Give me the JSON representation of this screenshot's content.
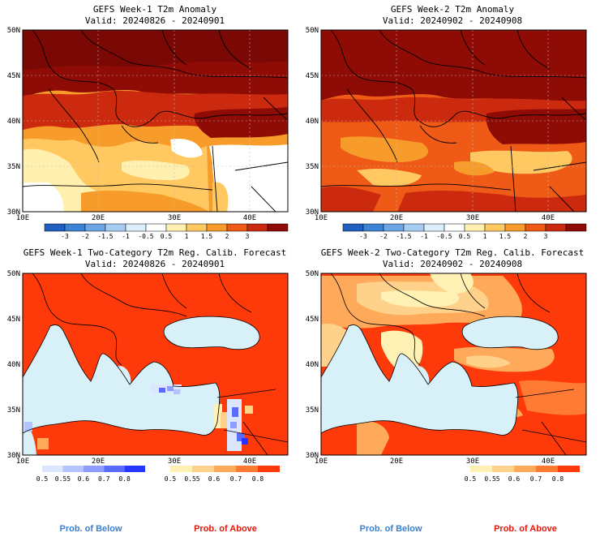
{
  "panels": [
    {
      "title_line1": "GEFS Week-1 T2m Anomaly",
      "title_line2": "Valid: 20240826 - 20240901",
      "kind": "anomaly"
    },
    {
      "title_line1": "GEFS Week-2 T2m Anomaly",
      "title_line2": "Valid: 20240902 - 20240908",
      "kind": "anomaly"
    },
    {
      "title_line1": "GEFS Week-1 Two-Category T2m Reg. Calib. Forecast",
      "title_line2": "Valid: 20240826 - 20240901",
      "kind": "probability"
    },
    {
      "title_line1": "GEFS Week-2 Two-Category T2m Reg. Calib. Forecast",
      "title_line2": "Valid: 20240902 - 20240908",
      "kind": "probability"
    }
  ],
  "axes": {
    "lat_labels": [
      "30N",
      "35N",
      "40N",
      "45N",
      "50N"
    ],
    "lon_labels": [
      "10E",
      "20E",
      "30E",
      "40E"
    ]
  },
  "anomaly_colorbar": {
    "labels": [
      "-3",
      "-2",
      "-1.5",
      "-1",
      "-0.5",
      "0.5",
      "1",
      "1.5",
      "2",
      "3"
    ],
    "colors": [
      "#1f5fbf",
      "#3c82d6",
      "#6aa6e6",
      "#a8cdf2",
      "#dbeefa",
      "#ffffff",
      "#fff0b0",
      "#ffc860",
      "#f79c2a",
      "#ef5a16",
      "#cc2a0e",
      "#8f0b05"
    ]
  },
  "prob_below_colorbar": {
    "labels": [
      "0.5",
      "0.55",
      "0.6",
      "0.7",
      "0.8"
    ],
    "colors": [
      "#dce6ff",
      "#b4c4ff",
      "#8c9cff",
      "#5a6cff",
      "#2536ff"
    ]
  },
  "prob_above_colorbar": {
    "labels": [
      "0.5",
      "0.55",
      "0.6",
      "0.7",
      "0.8"
    ],
    "colors": [
      "#fff0b4",
      "#ffd28c",
      "#ffaa5a",
      "#ff7a32",
      "#ff3a0a"
    ]
  },
  "legend": {
    "below": "Prob. of Below",
    "above": "Prob. of Above",
    "below_color": "#3a7fd0",
    "above_color": "#e01a0a"
  },
  "map_colors": {
    "sea_probability": "#d8f0f8",
    "border": "#000000"
  }
}
